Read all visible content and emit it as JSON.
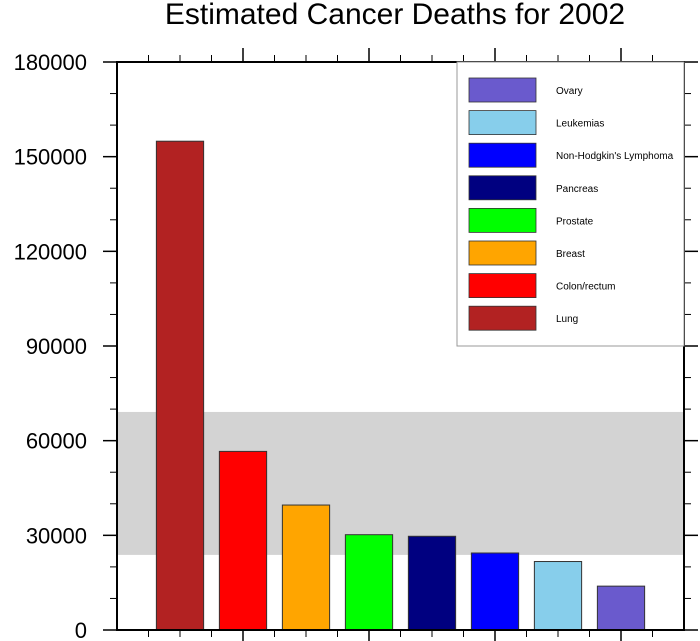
{
  "chart_data": {
    "type": "bar",
    "title": "Estimated Cancer Deaths for 2002",
    "xlabel": "",
    "ylabel": "",
    "categories": [
      "Lung",
      "Colon/rectum",
      "Breast",
      "Prostate",
      "Pancreas",
      "Non-Hodgkin's Lymphoma",
      "Leukemias",
      "Ovary"
    ],
    "values": [
      154900,
      56600,
      39600,
      30200,
      29700,
      24400,
      21700,
      13900
    ],
    "colors": [
      "#b22222",
      "#ff0000",
      "#ffa500",
      "#00ff00",
      "#000080",
      "#0000ff",
      "#87ceeb",
      "#6a5acd"
    ],
    "ylim": [
      0,
      180000
    ],
    "xlim": [
      0,
      9
    ],
    "yticks": [
      "0",
      "30000",
      "60000",
      "90000",
      "120000",
      "150000",
      "180000"
    ],
    "ytick_values": [
      0,
      30000,
      60000,
      90000,
      120000,
      150000,
      180000
    ],
    "shaded_band": {
      "from": 23800,
      "to": 69100,
      "color": "#d3d3d3"
    },
    "grid": false,
    "legend": {
      "position": "top-right",
      "entries": [
        "Ovary",
        "Leukemias",
        "Non-Hodgkin's Lymphoma",
        "Pancreas",
        "Prostate",
        "Breast",
        "Colon/rectum",
        "Lung"
      ],
      "colors": [
        "#6a5acd",
        "#87ceeb",
        "#0000ff",
        "#000080",
        "#00ff00",
        "#ffa500",
        "#ff0000",
        "#b22222"
      ]
    }
  }
}
